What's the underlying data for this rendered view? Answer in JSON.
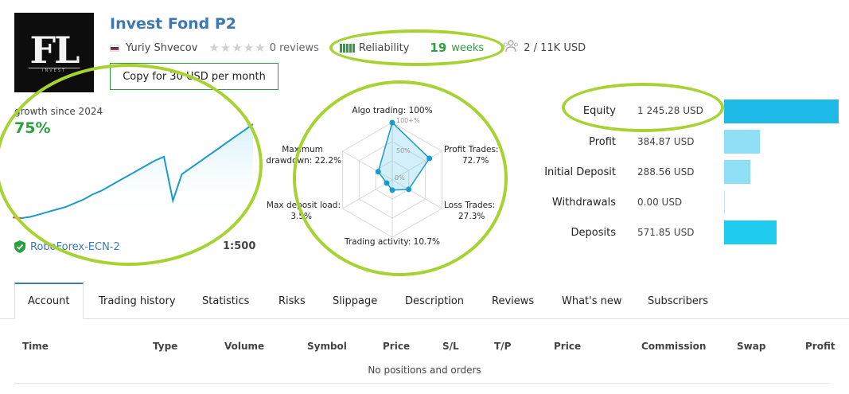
{
  "header": {
    "logo_text": "FL",
    "logo_sub_text": "INVEST",
    "title": "Invest Fond P2",
    "author": "Yuriy Shvecov",
    "country_flag_icon": "russia-flag-icon",
    "reviews_text": "0 reviews",
    "reliability_label": "Reliability",
    "weeks_number": "19",
    "weeks_label": "weeks",
    "subscribers_text": "2 / 11K USD",
    "copy_button_label": "Copy for 30 USD per month"
  },
  "growth": {
    "label": "growth since 2024",
    "value": "75%",
    "broker": "RoboForex-ECN-2",
    "leverage": "1:500",
    "accent": "#1a9bc8",
    "drawdown_color": "#e05a3a"
  },
  "chart_data": {
    "type": "line",
    "title": "growth since 2024",
    "series": [
      {
        "values": [
          0.5,
          0,
          1,
          3,
          5,
          7,
          9,
          12,
          15,
          19,
          22,
          26,
          30,
          34,
          38,
          42,
          46,
          49,
          14,
          35,
          40,
          45,
          50,
          55,
          60,
          65,
          70,
          75
        ]
      }
    ]
  },
  "radar": {
    "axes": [
      {
        "label": "Algo trading: 100%",
        "value": 100
      },
      {
        "label": "Profit Trades: 72.7%",
        "value": 72.7
      },
      {
        "label": "Loss Trades: 27.3%",
        "value": 27.3
      },
      {
        "label": "Trading activity: 10.7%",
        "value": 10.7
      },
      {
        "label": "Max deposit load: 3.5%",
        "value": 3.5
      },
      {
        "label": "Maximum drawdown: 22.2%",
        "value": 22.2
      }
    ],
    "scale_labels": [
      "100+%",
      "50%",
      "0%"
    ],
    "max_drawdown_label_line1": "Maximum",
    "max_drawdown_label_line2": "drawdown: 22.2%",
    "profit_label_line1": "Profit Trades:",
    "profit_label_line2": "72.7%",
    "loss_label_line1": "Loss Trades:",
    "loss_label_line2": "27.3%",
    "maxdep_label_line1": "Max deposit load:",
    "maxdep_label_line2": "3.5%",
    "accent": "#1a9bc8"
  },
  "metrics": [
    {
      "label": "Equity",
      "value": "1 245.28 USD",
      "amount": 1245.28,
      "color": "#1fbbe8"
    },
    {
      "label": "Profit",
      "value": "384.87 USD",
      "amount": 384.87,
      "color": "#8fe0f7"
    },
    {
      "label": "Initial Deposit",
      "value": "288.56 USD",
      "amount": 288.56,
      "color": "#8fe0f7"
    },
    {
      "label": "Withdrawals",
      "value": "0.00 USD",
      "amount": 0,
      "color": "#8fe0f7"
    },
    {
      "label": "Deposits",
      "value": "571.85 USD",
      "amount": 571.85,
      "color": "#1fcbef"
    }
  ],
  "tabs": [
    "Account",
    "Trading history",
    "Statistics",
    "Risks",
    "Slippage",
    "Description",
    "Reviews",
    "What's new",
    "Subscribers"
  ],
  "table": {
    "columns": [
      "Time",
      "Type",
      "Volume",
      "Symbol",
      "Price",
      "S/L",
      "T/P",
      "Price",
      "Commission",
      "Swap",
      "Profit"
    ],
    "empty_text": "No positions and orders"
  },
  "highlight_color": "#a6d332"
}
